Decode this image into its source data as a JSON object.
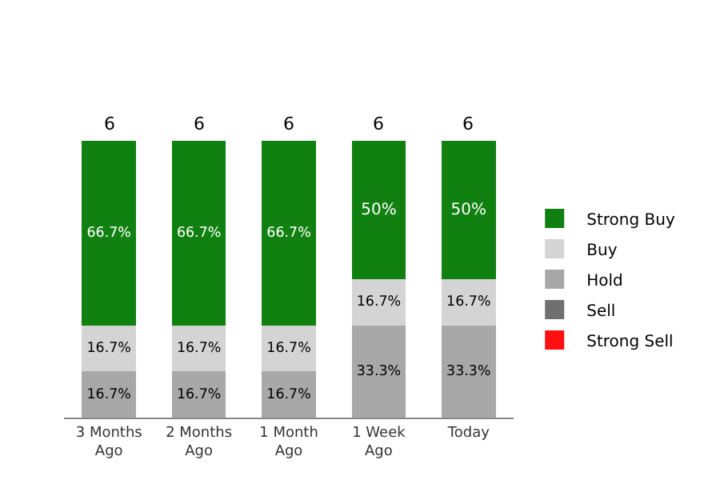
{
  "chart_data": {
    "type": "bar",
    "stacked": true,
    "legend": "right",
    "categories": [
      "3 Months Ago",
      "2 Months Ago",
      "1 Month Ago",
      "1 Week Ago",
      "Today"
    ],
    "series": [
      {
        "name": "Strong Sell",
        "color": "#ff1010",
        "values": [
          null,
          null,
          null,
          null,
          null
        ]
      },
      {
        "name": "Sell",
        "color": "#707070",
        "values": [
          null,
          null,
          null,
          null,
          null
        ]
      },
      {
        "name": "Hold",
        "color": "#a8a8a8",
        "values": [
          16.7,
          16.7,
          16.7,
          33.3,
          33.3
        ],
        "value_labels": [
          "16.7%",
          "16.7%",
          "16.7%",
          "33.3%",
          "33.3%"
        ]
      },
      {
        "name": "Buy",
        "color": "#d4d4d4",
        "values": [
          16.7,
          16.7,
          16.7,
          16.7,
          16.7
        ],
        "value_labels": [
          "16.7%",
          "16.7%",
          "16.7%",
          "16.7%",
          "16.7%"
        ]
      },
      {
        "name": "Strong Buy",
        "color": "#108010",
        "values": [
          66.7,
          66.7,
          66.7,
          50,
          50
        ],
        "value_labels": [
          "66.7%",
          "66.7%",
          "66.7%",
          "50%",
          "50%"
        ]
      }
    ],
    "annotations": [
      "6",
      "6",
      "6",
      "6",
      "6"
    ]
  }
}
